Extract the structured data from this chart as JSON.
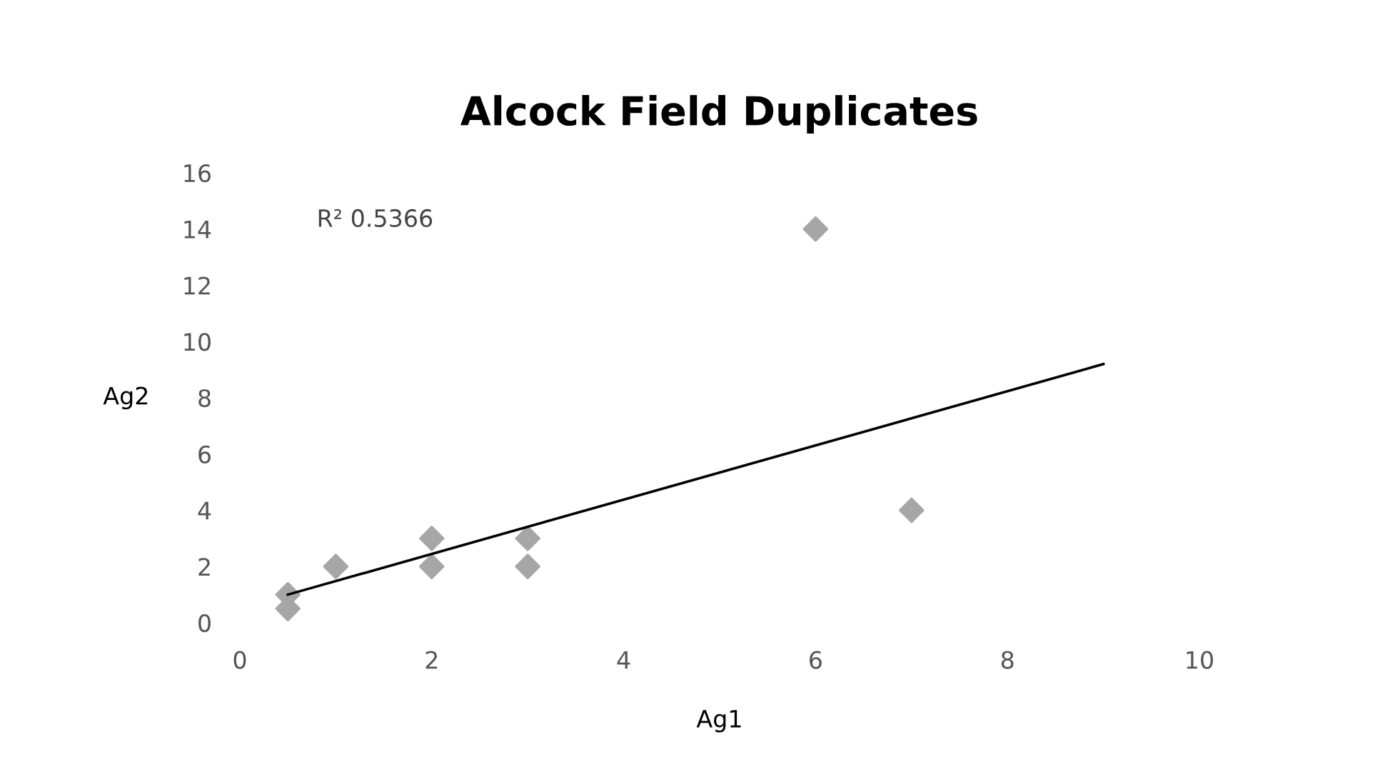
{
  "chart_data": {
    "type": "scatter",
    "title": "Alcock Field Duplicates",
    "xlabel": "Ag1",
    "ylabel": "Ag2",
    "xlim": [
      0,
      10
    ],
    "xticks": [
      0,
      2,
      4,
      6,
      8,
      10
    ],
    "ylim": [
      0,
      16
    ],
    "yticks": [
      0,
      2,
      4,
      6,
      8,
      10,
      12,
      14,
      16
    ],
    "grid": false,
    "legend": false,
    "annotations": [
      "R² 0.5366"
    ],
    "series": [
      {
        "color": "#a6a6a6",
        "marker": "diamond",
        "x": [
          0.5,
          0.5,
          1,
          2,
          2,
          3,
          3,
          6,
          7
        ],
        "values": [
          1,
          0.5,
          2,
          3,
          2,
          3,
          2,
          14,
          4
        ]
      },
      {
        "type": "line",
        "color": "#000000",
        "x": [
          0.5,
          9
        ],
        "values": [
          1.0,
          9.2
        ]
      }
    ]
  }
}
